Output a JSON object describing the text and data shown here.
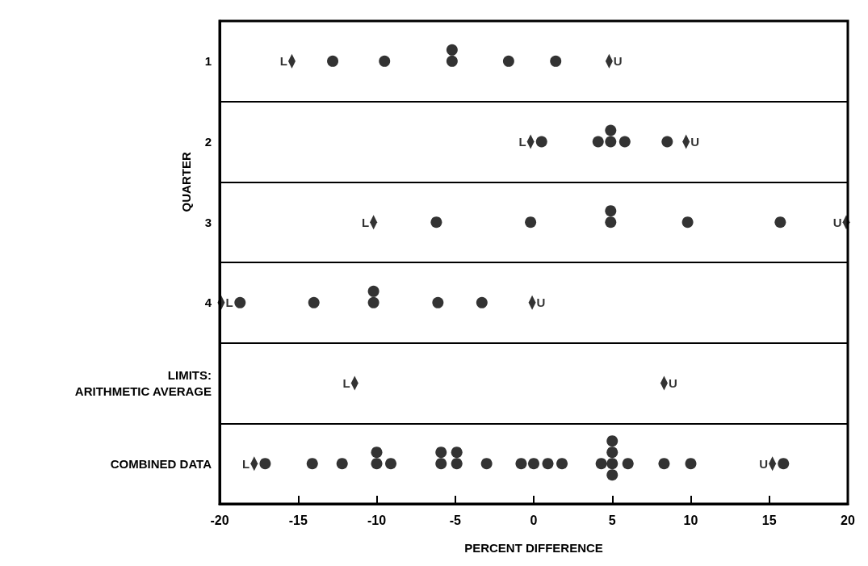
{
  "chart_data": {
    "type": "scatter",
    "orientation": "horizontal",
    "xlabel": "PERCENT DIFFERENCE",
    "ylabel": "QUARTER",
    "categories": [
      "1",
      "2",
      "3",
      "4",
      "LIMITS:\nARITHMETIC AVERAGE",
      "COMBINED DATA"
    ],
    "xlim": [
      -20,
      20
    ],
    "xticks": [
      -20,
      -15,
      -10,
      -5,
      0,
      5,
      10,
      15,
      20
    ],
    "grid": "y",
    "marker": "circle",
    "series": [
      {
        "color": "#000000",
        "x": [
          "1",
          "1",
          "1",
          "1",
          "1",
          "1",
          "2",
          "2",
          "2",
          "2",
          "2",
          "2",
          "3",
          "3",
          "3",
          "3",
          "3",
          "3",
          "4",
          "4",
          "4",
          "4",
          "4",
          "4",
          "COMBINED DATA",
          "COMBINED DATA",
          "COMBINED DATA",
          "COMBINED DATA",
          "COMBINED DATA",
          "COMBINED DATA",
          "COMBINED DATA",
          "COMBINED DATA",
          "COMBINED DATA",
          "COMBINED DATA",
          "COMBINED DATA",
          "COMBINED DATA",
          "COMBINED DATA",
          "COMBINED DATA",
          "COMBINED DATA",
          "COMBINED DATA",
          "COMBINED DATA",
          "COMBINED DATA",
          "COMBINED DATA",
          "COMBINED DATA",
          "COMBINED DATA",
          "COMBINED DATA",
          "COMBINED DATA",
          "COMBINED DATA"
        ],
        "values": [
          -12.8,
          -9.5,
          -5.2,
          -5.2,
          -1.6,
          1.4,
          0.5,
          4.1,
          4.9,
          4.9,
          5.8,
          8.5,
          -6.2,
          -0.2,
          4.9,
          4.9,
          9.8,
          15.7,
          -18.7,
          -14.0,
          -10.2,
          -10.2,
          -6.1,
          -3.3,
          -17.1,
          -14.1,
          -12.2,
          -10.0,
          -10.0,
          -9.1,
          -5.9,
          -5.9,
          -4.9,
          -4.9,
          -3.0,
          -0.8,
          0.0,
          0.9,
          1.8,
          4.3,
          5.0,
          5.0,
          5.0,
          5.0,
          6.0,
          8.3,
          10.0,
          15.9
        ]
      },
      {
        "color": "#000000",
        "marker": "diamond",
        "x": [
          "1",
          "1",
          "2",
          "2",
          "3",
          "3",
          "4",
          "4",
          "LIMITS:\nARITHMETIC AVERAGE",
          "LIMITS:\nARITHMETIC AVERAGE",
          "COMBINED DATA",
          "COMBINED DATA"
        ],
        "values": [
          -15.4,
          4.8,
          -0.2,
          9.7,
          -10.2,
          19.9,
          -19.9,
          -0.1,
          -11.4,
          8.3,
          -17.8,
          15.2
        ],
        "value_labels": [
          "L",
          "U",
          "L",
          "U",
          "L",
          "U",
          "L",
          "U",
          "L",
          "U",
          "L",
          "U"
        ]
      }
    ]
  }
}
